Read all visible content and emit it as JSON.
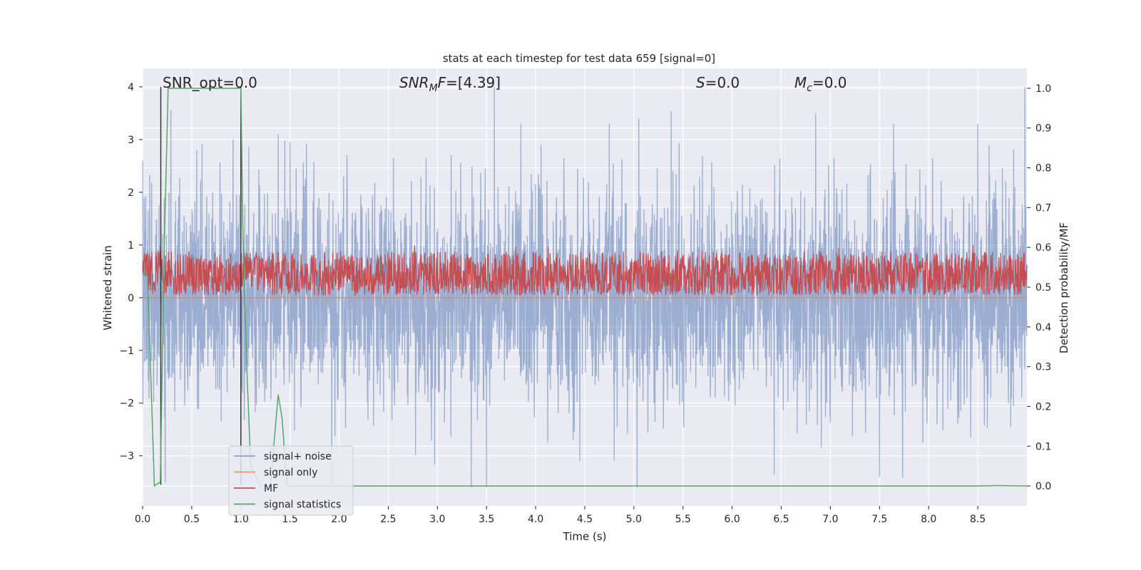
{
  "chart_data": {
    "type": "line",
    "title": "stats at each timestep for test data 659 [signal=0]",
    "xlabel": "Time (s)",
    "ylabel_left": "Whitened strain",
    "ylabel_right": "Detection probability/MF",
    "xlim": [
      0.0,
      9.0
    ],
    "ylim_left": [
      -3.95,
      4.35
    ],
    "ylim_right": [
      -0.05,
      1.05
    ],
    "x_ticks": [
      "0.0",
      "0.5",
      "1.0",
      "1.5",
      "2.0",
      "2.5",
      "3.0",
      "3.5",
      "4.0",
      "4.5",
      "5.0",
      "5.5",
      "6.0",
      "6.5",
      "7.0",
      "7.5",
      "8.0",
      "8.5"
    ],
    "x_tick_values": [
      0.0,
      0.5,
      1.0,
      1.5,
      2.0,
      2.5,
      3.0,
      3.5,
      4.0,
      4.5,
      5.0,
      5.5,
      6.0,
      6.5,
      7.0,
      7.5,
      8.0,
      8.5
    ],
    "y_left_ticks": [
      "4",
      "3",
      "2",
      "1",
      "0",
      "−1",
      "−2",
      "−3"
    ],
    "y_left_tick_values": [
      4,
      3,
      2,
      1,
      0,
      -1,
      -2,
      -3
    ],
    "y_right_ticks": [
      "1.0",
      "0.9",
      "0.8",
      "0.7",
      "0.6",
      "0.5",
      "0.4",
      "0.3",
      "0.2",
      "0.1",
      "0.0"
    ],
    "y_right_tick_values": [
      1.0,
      0.9,
      0.8,
      0.7,
      0.6,
      0.5,
      0.4,
      0.3,
      0.2,
      0.1,
      0.0
    ],
    "grid": true,
    "legend_position": "lower-left",
    "annotations": [
      {
        "prefix": "SNR_opt=0.0",
        "sub": "",
        "suffix": "",
        "italic": false
      },
      {
        "prefix": "SNR",
        "sub": "M",
        "suffix": "F=[4.39]",
        "italic": true
      },
      {
        "prefix": "S",
        "sub": "",
        "suffix": "=0.0",
        "italic": true
      },
      {
        "prefix": "M",
        "sub": "c",
        "suffix": "=0.0",
        "italic": true
      }
    ],
    "series": [
      {
        "name": "signal+ noise",
        "color": "#4c72b0",
        "axis": "left",
        "kind": "noise",
        "range": [
          -3.6,
          4.0
        ],
        "typical_abs": 1.0,
        "peaks": [
          [
            0.0,
            2.6
          ],
          [
            0.55,
            2.8
          ],
          [
            0.92,
            3.0
          ],
          [
            1.38,
            3.1
          ],
          [
            3.5,
            -3.6
          ],
          [
            3.85,
            3.3
          ],
          [
            4.75,
            3.3
          ],
          [
            5.05,
            3.4
          ],
          [
            6.85,
            3.5
          ],
          [
            8.5,
            3.3
          ],
          [
            8.98,
            4.0
          ],
          [
            7.5,
            -3.4
          ],
          [
            4.45,
            -3.1
          ]
        ]
      },
      {
        "name": "signal only",
        "color": "#dd8452",
        "axis": "left",
        "kind": "flat",
        "value": 0.0
      },
      {
        "name": "MF",
        "color": "#c44e52",
        "axis": "right",
        "kind": "band",
        "band": [
          0.48,
          0.59
        ],
        "max": 0.61
      },
      {
        "name": "signal statistics",
        "color": "#55a868",
        "axis": "right",
        "x": [
          0.0,
          0.05,
          0.12,
          0.18,
          0.22,
          0.26,
          0.3,
          0.5,
          0.8,
          0.98,
          1.0,
          1.02,
          1.06,
          1.1,
          1.2,
          1.3,
          1.38,
          1.42,
          1.47,
          1.52,
          2.0,
          5.0,
          8.5,
          8.7,
          9.0
        ],
        "y": [
          0.54,
          0.53,
          0.0,
          0.01,
          0.6,
          1.0,
          1.0,
          1.0,
          1.0,
          1.0,
          1.0,
          0.65,
          0.3,
          0.05,
          0.0,
          0.0,
          0.23,
          0.17,
          0.0,
          0.0,
          0.0,
          0.0,
          0.0,
          0.001,
          0.0
        ]
      }
    ],
    "vertical_lines": [
      {
        "x": 0.185,
        "y_from": -3.55,
        "y_to": 4.0,
        "color": "#333333"
      },
      {
        "x": 1.0,
        "y_from": -3.55,
        "y_to": 4.0,
        "color": "#333333"
      }
    ]
  }
}
